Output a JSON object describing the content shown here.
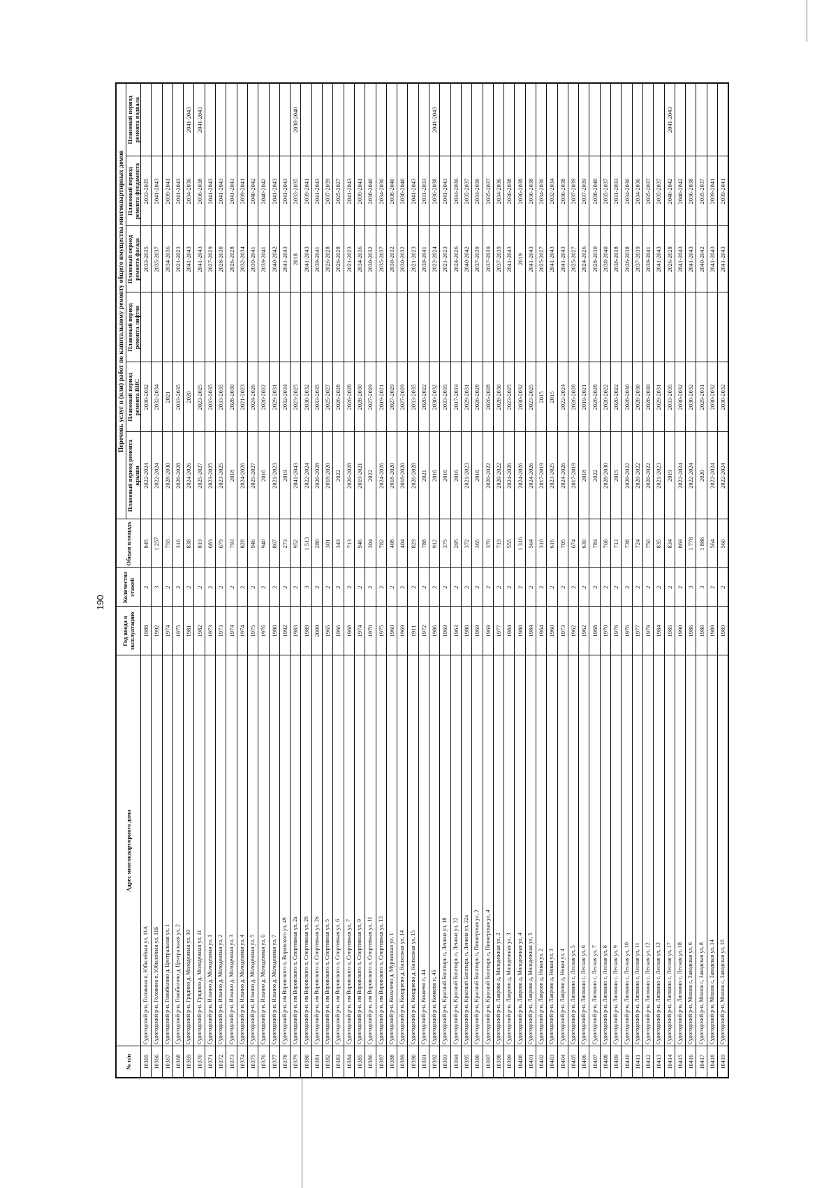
{
  "page_number": "190",
  "headers": {
    "num": "№ п/п",
    "address": "Адрес многоквартирного дома",
    "year": "Год ввода в эксплуатацию",
    "floors": "Количество этажей",
    "area": "Общая площадь",
    "group": "Перечень услуг и (или) работ по капитальному ремонту общего имущества многоквартирных домов",
    "roof": "Плановый период ремонта крыши",
    "vis": "Плановый период ремонта ВИС",
    "lift": "Плановый период ремонта лифтов",
    "facade": "Плановый период ремонта фасада",
    "foundation": "Плановый период ремонта фундамента",
    "basement": "Плановый период ремонта подвала"
  },
  "rows": [
    [
      "10365",
      "Судогодский р-н, Головино п, Юбилейная ул, 11А",
      "1988",
      "2",
      "845",
      "2022-2024",
      "2030-2032",
      "",
      "2033-2035",
      "2033-2035",
      ""
    ],
    [
      "10366",
      "Судогодский р-н, Головино п, Юбилейная ул, 11Б",
      "1992",
      "3",
      "1 257",
      "2022-2024",
      "2032-2034",
      "",
      "2035-2037",
      "2041-2043",
      ""
    ],
    [
      "10367",
      "Судогодский р-н, Гонобилово д, Центральная ул, 1",
      "1974",
      "2",
      "759",
      "2028-2030",
      "2021",
      "",
      "2034-2036",
      "2039-2041",
      ""
    ],
    [
      "10368",
      "Судогодский р-н, Гонобилово д, Центральная ул, 2",
      "1975",
      "2",
      "316",
      "2026-2028",
      "2033-2035",
      "",
      "2021-2023",
      "2041-2043",
      ""
    ],
    [
      "10369",
      "Судогодский р-н, Гридино д, Молодежная ул, 10",
      "1981",
      "2",
      "838",
      "2024-2026",
      "2020",
      "",
      "2041-2043",
      "2034-2036",
      "2041-2043"
    ],
    [
      "10370",
      "Судогодский р-н, Гридино д, Молодежная ул, 11",
      "1982",
      "2",
      "819",
      "2025-2027",
      "2023-2025",
      "",
      "2041-2043",
      "2036-2038",
      "2041-2043"
    ],
    [
      "10371",
      "Судогодский р-н, Ильино д, Молодежная ул, 1",
      "1973",
      "2",
      "683",
      "2023-2025",
      "2033-2035",
      "",
      "2027-2029",
      "2041-2043",
      ""
    ],
    [
      "10372",
      "Судогодский р-н, Ильино д, Молодежная ул, 2",
      "1973",
      "2",
      "679",
      "2023-2025",
      "2033-2035",
      "",
      "2028-2030",
      "2041-2043",
      ""
    ],
    [
      "10373",
      "Судогодский р-н, Ильино д, Молодежная ул, 3",
      "1974",
      "2",
      "793",
      "2018",
      "2028-2030",
      "",
      "2026-2028",
      "2041-2043",
      ""
    ],
    [
      "10374",
      "Судогодский р-н, Ильино д, Молодежная ул, 4",
      "1974",
      "2",
      "828",
      "2024-2026",
      "2021-2023",
      "",
      "2032-2034",
      "2039-2041",
      ""
    ],
    [
      "10375",
      "Судогодский р-н, Ильино д, Молодежная ул, 5",
      "1975",
      "2",
      "946",
      "2025-2027",
      "2024-2026",
      "",
      "2039-2041",
      "2040-2042",
      ""
    ],
    [
      "10376",
      "Судогодский р-н, Ильино д, Молодежная ул, 6",
      "1976",
      "2",
      "940",
      "2016",
      "2020-2022",
      "",
      "2039-2041",
      "2040-2042",
      ""
    ],
    [
      "10377",
      "Судогодский р-н, Ильино д, Молодежная ул, 7",
      "1980",
      "2",
      "867",
      "2021-2023",
      "2029-2031",
      "",
      "2040-2042",
      "2041-2043",
      ""
    ],
    [
      "10378",
      "Судогодский р-н, им Воровского п, Воровского ул, 49",
      "1992",
      "2",
      "273",
      "2019",
      "2032-2034",
      "",
      "2041-2043",
      "2041-2043",
      ""
    ],
    [
      "10379",
      "Судогодский р-н, им Воровского п, Спортивная ул, 2а",
      "1983",
      "2",
      "952",
      "2041-2043",
      "2023-2025",
      "",
      "2018",
      "2033-2035",
      "2038-2040"
    ],
    [
      "10380",
      "Судогодский р-н, им Воровского п, Спортивная ул, 2б",
      "1989",
      "3",
      "1 513",
      "2022-2024",
      "2030-2032",
      "",
      "2041-2043",
      "2039-2041",
      ""
    ],
    [
      "10381",
      "Судогодский р-н, им Воровского п, Спортивная ул, 2в",
      "2009",
      "2",
      "280",
      "2026-2028",
      "2033-2035",
      "",
      "2039-2041",
      "2041-2043",
      ""
    ],
    [
      "10382",
      "Судогодский р-н, им Воровского п, Спортивная ул, 5",
      "1965",
      "2",
      "301",
      "2018-2020",
      "2025-2027",
      "",
      "2026-2028",
      "2037-2039",
      ""
    ],
    [
      "10383",
      "Судогодский р-н, им Воровского п, Спортивная ул, 6",
      "1966",
      "2",
      "343",
      "2022",
      "2026-2028",
      "",
      "2026-2028",
      "2025-2027",
      ""
    ],
    [
      "10384",
      "Судогодский р-н, им Воровского п, Спортивная ул, 7",
      "1968",
      "2",
      "713",
      "2026-2028",
      "2026-2028",
      "",
      "2021-2023",
      "2041-2043",
      ""
    ],
    [
      "10385",
      "Судогодский р-н, им Воровского п, Спортивная ул, 9",
      "1974",
      "2",
      "946",
      "2019-2021",
      "2028-2030",
      "",
      "2034-2036",
      "2039-2041",
      ""
    ],
    [
      "10386",
      "Судогодский р-н, им Воровского п, Спортивная ул, 11",
      "1970",
      "2",
      "304",
      "2022",
      "2027-2029",
      "",
      "2030-2032",
      "2038-2040",
      ""
    ],
    [
      "10387",
      "Судогодский р-н, им Воровского п, Спортивная ул, 13",
      "1975",
      "2",
      "782",
      "2024-2026",
      "2019-2021",
      "",
      "2035-2037",
      "2034-2036",
      ""
    ],
    [
      "10388",
      "Судогодский р-н, Колычево д, Муромская ул, 1",
      "1969",
      "2",
      "408",
      "2018-2020",
      "2027-2029",
      "",
      "2030-2032",
      "2038-2040",
      ""
    ],
    [
      "10389",
      "Судогодский р-н, Кондряево д, Колхозная ул, 14",
      "1969",
      "2",
      "404",
      "2018-2020",
      "2027-2029",
      "",
      "2030-2032",
      "2038-2040",
      ""
    ],
    [
      "10390",
      "Судогодский р-н, Кондряево д, Колхозная ул, 15",
      "1911",
      "2",
      "829",
      "2026-2028",
      "2033-2035",
      "",
      "2021-2023",
      "2041-2043",
      ""
    ],
    [
      "10391",
      "Судогодский р-н, Коняево п, 44",
      "1972",
      "2",
      "788",
      "2021",
      "2020-2022",
      "",
      "2039-2041",
      "2031-2033",
      ""
    ],
    [
      "10392",
      "Судогодский р-н, Коняево п, 45",
      "1986",
      "2",
      "912",
      "2016",
      "2030-2032",
      "",
      "2022-2024",
      "2036-2038",
      "2041-2043"
    ],
    [
      "10393",
      "Судогодский р-н, Красный Богатырь п, Ленина ул, 18",
      "1969",
      "2",
      "375",
      "2016",
      "2033-2035",
      "",
      "2021-2023",
      "2041-2043",
      ""
    ],
    [
      "10394",
      "Судогодский р-н, Красный Богатырь п, Ленина ул, 32",
      "1963",
      "2",
      "295",
      "2016",
      "2017-2019",
      "",
      "2024-2026",
      "2034-2036",
      ""
    ],
    [
      "10395",
      "Судогодский р-н, Красный Богатырь п, Ленина ул, 32а",
      "1980",
      "2",
      "372",
      "2021-2023",
      "2029-2031",
      "",
      "2040-2042",
      "2035-2037",
      ""
    ],
    [
      "10396",
      "Судогодский р-н, Красный Богатырь п, Пионерская ул, 2",
      "1969",
      "2",
      "365",
      "2016",
      "2026-2028",
      "",
      "2037-2039",
      "2034-2036",
      ""
    ],
    [
      "10397",
      "Судогодский р-н, Красный Богатырь п, Пионерская ул, 4",
      "1969",
      "2",
      "370",
      "2020-2022",
      "2026-2028",
      "",
      "2037-2039",
      "2035-2037",
      ""
    ],
    [
      "10398",
      "Судогодский р-н, Лаврово д, Молодежная ул, 2",
      "1977",
      "2",
      "719",
      "2020-2022",
      "2028-2030",
      "",
      "2037-2039",
      "2034-2036",
      ""
    ],
    [
      "10399",
      "Судогодский р-н, Лаврово д, Молодежная ул, 3",
      "1984",
      "2",
      "555",
      "2024-2026",
      "2023-2025",
      "",
      "2041-2043",
      "2036-2038",
      ""
    ],
    [
      "10400",
      "Судогодский р-н, Лаврово д, Молодежная ул, 4",
      "1980",
      "2",
      "1 316",
      "2024-2026",
      "2030-2032",
      "",
      "2019",
      "2036-2038",
      ""
    ],
    [
      "10401",
      "Судогодский р-н, Лаврово д, Молодежная ул, 5",
      "1984",
      "2",
      "564",
      "2024-2026",
      "2023-2025",
      "",
      "2041-2043",
      "2036-2038",
      ""
    ],
    [
      "10402",
      "Судогодский р-н, Лаврово д, Новая ул, 2",
      "1964",
      "2",
      "310",
      "2017-2019",
      "2015",
      "",
      "2025-2027",
      "2034-2036",
      ""
    ],
    [
      "10403",
      "Судогодский р-н, Лаврово д, Новая ул, 3",
      "1960",
      "2",
      "616",
      "2023-2025",
      "2015",
      "",
      "2041-2043",
      "2032-2034",
      ""
    ],
    [
      "10404",
      "Судогодский р-н, Лаврово д, Новая ул, 4",
      "1973",
      "2",
      "705",
      "2024-2026",
      "2022-2024",
      "",
      "2041-2043",
      "2036-2038",
      ""
    ],
    [
      "10405",
      "Судогодский р-н, Липкино с, Лесная ул, 5",
      "1962",
      "2",
      "674",
      "2017-2019",
      "2026-2028",
      "",
      "2025-2027",
      "2037-2039",
      ""
    ],
    [
      "10406",
      "Судогодский р-н, Липкино с, Лесная ул, 6",
      "1962",
      "2",
      "630",
      "2018",
      "2019-2021",
      "",
      "2024-2026",
      "2037-2039",
      ""
    ],
    [
      "10407",
      "Судогодский р-н, Липкино с, Лесная ул, 7",
      "1968",
      "2",
      "784",
      "2022",
      "2026-2028",
      "",
      "2028-2030",
      "2038-2040",
      ""
    ],
    [
      "10408",
      "Судогодский р-н, Липкино с, Лесная ул, 8",
      "1970",
      "2",
      "768",
      "2028-2030",
      "2020-2022",
      "",
      "2038-2040",
      "2035-2037",
      ""
    ],
    [
      "10409",
      "Судогодский р-н, Липкино с, Лесная ул, 9",
      "1976",
      "2",
      "713",
      "2015",
      "2020-2022",
      "",
      "2036-2038",
      "2031-2033",
      ""
    ],
    [
      "10410",
      "Судогодский р-н, Липкино с, Лесная ул, 10",
      "1976",
      "2",
      "738",
      "2020-2022",
      "2028-2030",
      "",
      "2036-2038",
      "2034-2036",
      ""
    ],
    [
      "10411",
      "Судогодский р-н, Липкино с, Лесная ул, 11",
      "1977",
      "2",
      "724",
      "2020-2022",
      "2028-2030",
      "",
      "2037-2039",
      "2034-2036",
      ""
    ],
    [
      "10412",
      "Судогодский р-н, Липкино с, Лесная ул, 12",
      "1979",
      "2",
      "750",
      "2020-2022",
      "2028-2030",
      "",
      "2039-2041",
      "2035-2037",
      ""
    ],
    [
      "10413",
      "Судогодский р-н, Липкино с, Лесная ул, 13",
      "1984",
      "2",
      "835",
      "2021-2023",
      "2029-2031",
      "",
      "2041-2043",
      "2035-2037",
      ""
    ],
    [
      "10414",
      "Судогодский р-н, Липкино с, Лесная ул, 17",
      "1985",
      "2",
      "834",
      "2019",
      "2033-2035",
      "",
      "2026-2028",
      "2040-2042",
      "2041-2043"
    ],
    [
      "10415",
      "Судогодский р-н, Липкино с, Лесная ул, 18",
      "1990",
      "2",
      "869",
      "2022-2024",
      "2030-2032",
      "",
      "2041-2043",
      "2040-2042",
      ""
    ],
    [
      "10416",
      "Судогодский р-н, Мошок с, Заводская ул, 6",
      "1986",
      "3",
      "1 778",
      "2022-2024",
      "2030-2032",
      "",
      "2041-2043",
      "2036-2038",
      ""
    ],
    [
      "10417",
      "Судогодский р-н, Мошок с, Заводская ул, 8",
      "1980",
      "3",
      "1 886",
      "2020",
      "2029-2031",
      "",
      "2040-2042",
      "2035-2037",
      ""
    ],
    [
      "10418",
      "Судогодский р-н, Мошок с, Заводская ул, 14",
      "1989",
      "2",
      "564",
      "2022-2024",
      "2030-2032",
      "",
      "2041-2043",
      "2039-2041",
      ""
    ],
    [
      "10419",
      "Судогодский р-н, Мошок с, Заводская ул, 16",
      "1989",
      "2",
      "560",
      "2022-2024",
      "2030-2032",
      "",
      "2041-2043",
      "2039-2041",
      ""
    ]
  ]
}
